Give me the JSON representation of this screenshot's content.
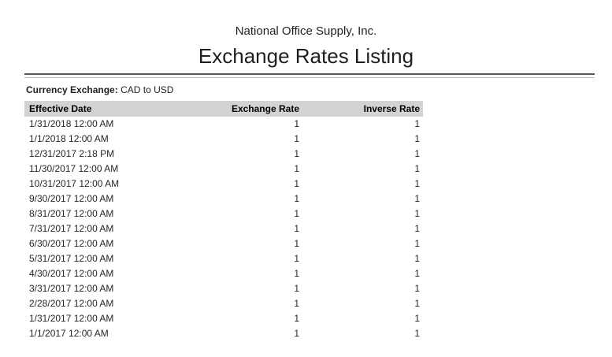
{
  "report": {
    "company": "National Office Supply, Inc.",
    "title": "Exchange Rates Listing",
    "filter": {
      "label": "Currency Exchange:",
      "value": "CAD to USD"
    },
    "table": {
      "columns": [
        "Effective Date",
        "Exchange Rate",
        "Inverse Rate"
      ],
      "rows": [
        {
          "effective_date": "1/31/2018 12:00 AM",
          "exchange_rate": "1",
          "inverse_rate": "1"
        },
        {
          "effective_date": "1/1/2018 12:00 AM",
          "exchange_rate": "1",
          "inverse_rate": "1"
        },
        {
          "effective_date": "12/31/2017 2:18 PM",
          "exchange_rate": "1",
          "inverse_rate": "1"
        },
        {
          "effective_date": "11/30/2017 12:00 AM",
          "exchange_rate": "1",
          "inverse_rate": "1"
        },
        {
          "effective_date": "10/31/2017 12:00 AM",
          "exchange_rate": "1",
          "inverse_rate": "1"
        },
        {
          "effective_date": "9/30/2017 12:00 AM",
          "exchange_rate": "1",
          "inverse_rate": "1"
        },
        {
          "effective_date": "8/31/2017 12:00 AM",
          "exchange_rate": "1",
          "inverse_rate": "1"
        },
        {
          "effective_date": "7/31/2017 12:00 AM",
          "exchange_rate": "1",
          "inverse_rate": "1"
        },
        {
          "effective_date": "6/30/2017 12:00 AM",
          "exchange_rate": "1",
          "inverse_rate": "1"
        },
        {
          "effective_date": "5/31/2017 12:00 AM",
          "exchange_rate": "1",
          "inverse_rate": "1"
        },
        {
          "effective_date": "4/30/2017 12:00 AM",
          "exchange_rate": "1",
          "inverse_rate": "1"
        },
        {
          "effective_date": "3/31/2017 12:00 AM",
          "exchange_rate": "1",
          "inverse_rate": "1"
        },
        {
          "effective_date": "2/28/2017 12:00 AM",
          "exchange_rate": "1",
          "inverse_rate": "1"
        },
        {
          "effective_date": "1/31/2017 12:00 AM",
          "exchange_rate": "1",
          "inverse_rate": "1"
        },
        {
          "effective_date": "1/1/2017 12:00 AM",
          "exchange_rate": "1",
          "inverse_rate": "1"
        }
      ]
    }
  },
  "colors": {
    "table_header_bg": "#d3d3d3",
    "rule_dark": "#595959",
    "rule_light": "#c0c0c0",
    "text": "#262626",
    "background": "#ffffff"
  }
}
